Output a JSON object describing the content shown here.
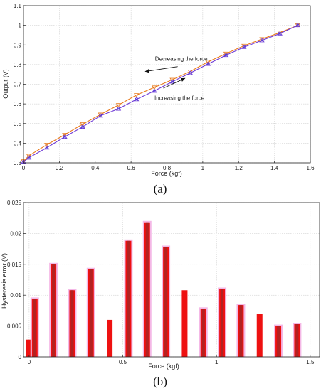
{
  "chart_data": [
    {
      "type": "line",
      "panel_label": "(a)",
      "xlabel": "Force (kgf)",
      "ylabel": "Output (V)",
      "xlim": [
        0,
        1.6
      ],
      "ylim": [
        0.3,
        1.1
      ],
      "xticks": [
        "0",
        "0.2",
        "0.4",
        "0.6",
        "0.8",
        "1",
        "1.2",
        "1.4",
        "1.6"
      ],
      "yticks": [
        "0.3",
        "0.4",
        "0.5",
        "0.6",
        "0.7",
        "0.8",
        "0.9",
        "1",
        "1.1"
      ],
      "xtick_values": [
        0,
        0.2,
        0.4,
        0.6,
        0.8,
        1.0,
        1.2,
        1.4,
        1.6
      ],
      "ytick_values": [
        0.3,
        0.4,
        0.5,
        0.6,
        0.7,
        0.8,
        0.9,
        1.0,
        1.1
      ],
      "grid": true,
      "x": [
        0,
        0.03,
        0.13,
        0.23,
        0.33,
        0.43,
        0.53,
        0.63,
        0.73,
        0.83,
        0.93,
        1.03,
        1.13,
        1.23,
        1.33,
        1.43,
        1.53
      ],
      "series": [
        {
          "label": "Decreasing the force",
          "color": "#e87a1c",
          "marker": "triangle-down",
          "values": [
            0.308,
            0.336,
            0.392,
            0.443,
            0.497,
            0.546,
            0.594,
            0.645,
            0.684,
            0.723,
            0.765,
            0.814,
            0.856,
            0.896,
            0.93,
            0.963,
            1.0
          ]
        },
        {
          "label": "Increasing the force",
          "color": "#6f3bd6",
          "marker": "triangle-up",
          "values": [
            0.305,
            0.326,
            0.377,
            0.432,
            0.483,
            0.54,
            0.575,
            0.623,
            0.666,
            0.713,
            0.757,
            0.803,
            0.848,
            0.889,
            0.923,
            0.958,
            1.0
          ]
        }
      ],
      "annotations": [
        {
          "text": "Decreasing the force",
          "x": 0.88,
          "y": 0.82,
          "arrow_to": [
            0.68,
            0.765
          ]
        },
        {
          "text": "Increasing the force",
          "x": 0.87,
          "y": 0.62,
          "arrow_from": [
            0.78,
            0.68
          ],
          "arrow_to": [
            0.9,
            0.73
          ]
        }
      ]
    },
    {
      "type": "bar",
      "panel_label": "(b)",
      "xlabel": "Force (kgf)",
      "ylabel": "Hysteresis error (V)",
      "xlim": [
        -0.03,
        1.55
      ],
      "ylim": [
        0,
        0.025
      ],
      "xticks": [
        "0",
        "0.5",
        "1",
        "1.5"
      ],
      "yticks": [
        "0",
        "0.005",
        "0.01",
        "0.015",
        "0.02",
        "0.025"
      ],
      "xtick_values": [
        0,
        0.5,
        1.0,
        1.5
      ],
      "ytick_values": [
        0,
        0.005,
        0.01,
        0.015,
        0.02,
        0.025
      ],
      "grid": true,
      "bar_color": "#ee1111",
      "highlight_color": "#f4b8e6",
      "highlight_core_color": "#b22222",
      "x": [
        0,
        0.03,
        0.13,
        0.23,
        0.33,
        0.43,
        0.53,
        0.63,
        0.73,
        0.83,
        0.93,
        1.03,
        1.13,
        1.23,
        1.33,
        1.43
      ],
      "values": [
        0.0028,
        0.0094,
        0.015,
        0.0108,
        0.0142,
        0.006,
        0.0188,
        0.0218,
        0.0178,
        0.0108,
        0.0078,
        0.011,
        0.0084,
        0.007,
        0.005,
        0.0053
      ],
      "highlighted": [
        false,
        true,
        true,
        true,
        true,
        false,
        true,
        true,
        true,
        false,
        true,
        true,
        true,
        false,
        true,
        true
      ]
    }
  ]
}
